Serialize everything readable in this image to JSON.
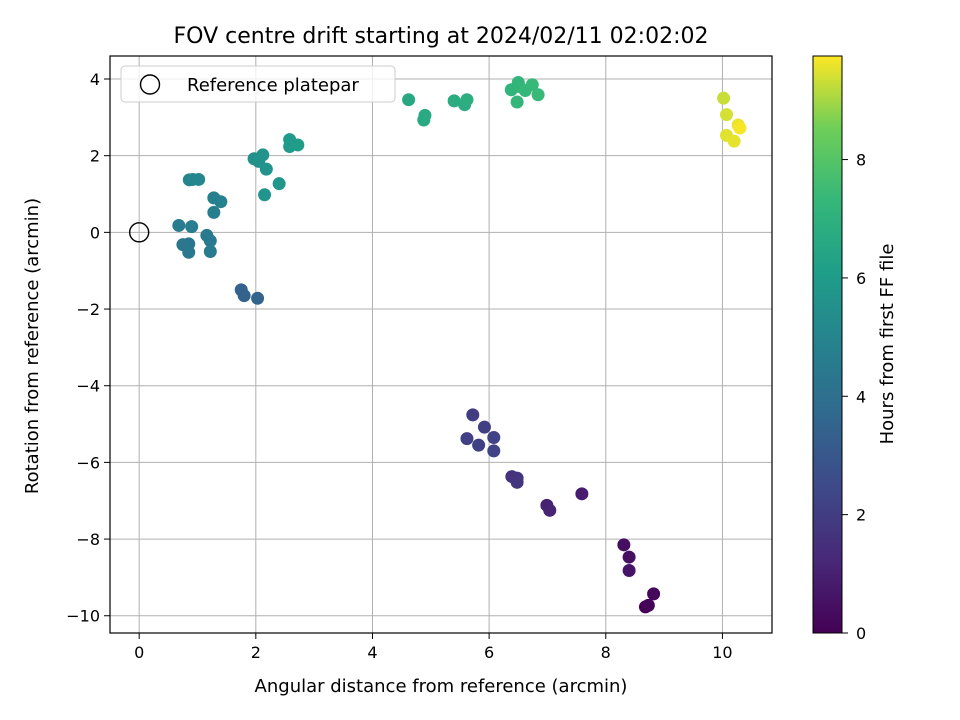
{
  "chart_data": {
    "type": "scatter",
    "title": "FOV centre drift starting at 2024/02/11 02:02:02",
    "xlabel": "Angular distance from reference (arcmin)",
    "ylabel": "Rotation from reference (arcmin)",
    "xlim": [
      -0.5,
      10.85
    ],
    "ylim": [
      -10.45,
      4.6
    ],
    "x_ticks": [
      0,
      2,
      4,
      6,
      8,
      10
    ],
    "y_ticks": [
      -10,
      -8,
      -6,
      -4,
      -2,
      0,
      2,
      4
    ],
    "grid": true,
    "legend": {
      "position": "top-left",
      "entries": [
        {
          "label": "Reference platepar",
          "marker": "open-circle"
        }
      ]
    },
    "reference_point": {
      "x": 0,
      "y": 0
    },
    "colorbar": {
      "label": "Hours from first FF file",
      "colormap": "viridis",
      "min": 0,
      "max": 9.75,
      "ticks": [
        0,
        2,
        4,
        6,
        8
      ]
    },
    "points": [
      {
        "x": 8.68,
        "y": -9.77,
        "c": 0.0
      },
      {
        "x": 8.73,
        "y": -9.73,
        "c": 0.1
      },
      {
        "x": 8.82,
        "y": -9.43,
        "c": 0.2
      },
      {
        "x": 8.31,
        "y": -8.15,
        "c": 0.4
      },
      {
        "x": 8.4,
        "y": -8.47,
        "c": 0.5
      },
      {
        "x": 8.4,
        "y": -8.82,
        "c": 0.6
      },
      {
        "x": 7.59,
        "y": -6.82,
        "c": 0.9
      },
      {
        "x": 6.99,
        "y": -7.12,
        "c": 1.0
      },
      {
        "x": 7.04,
        "y": -7.25,
        "c": 1.1
      },
      {
        "x": 6.39,
        "y": -6.37,
        "c": 1.6
      },
      {
        "x": 6.48,
        "y": -6.41,
        "c": 1.65
      },
      {
        "x": 6.48,
        "y": -6.52,
        "c": 1.7
      },
      {
        "x": 5.72,
        "y": -4.76,
        "c": 2.0
      },
      {
        "x": 5.92,
        "y": -5.08,
        "c": 2.05
      },
      {
        "x": 5.62,
        "y": -5.38,
        "c": 2.1
      },
      {
        "x": 5.82,
        "y": -5.55,
        "c": 2.15
      },
      {
        "x": 6.08,
        "y": -5.35,
        "c": 2.2
      },
      {
        "x": 6.08,
        "y": -5.7,
        "c": 2.25
      },
      {
        "x": 1.75,
        "y": -1.5,
        "c": 3.4
      },
      {
        "x": 1.8,
        "y": -1.65,
        "c": 3.45
      },
      {
        "x": 2.03,
        "y": -1.72,
        "c": 3.5
      },
      {
        "x": 0.85,
        "y": -0.3,
        "c": 4.3
      },
      {
        "x": 0.75,
        "y": -0.32,
        "c": 4.35
      },
      {
        "x": 0.85,
        "y": -0.52,
        "c": 4.4
      },
      {
        "x": 1.16,
        "y": -0.08,
        "c": 4.45
      },
      {
        "x": 1.22,
        "y": -0.22,
        "c": 4.5
      },
      {
        "x": 1.22,
        "y": -0.5,
        "c": 4.55
      },
      {
        "x": 0.68,
        "y": 0.18,
        "c": 4.6
      },
      {
        "x": 0.9,
        "y": 0.15,
        "c": 4.65
      },
      {
        "x": 1.28,
        "y": 0.52,
        "c": 4.75
      },
      {
        "x": 1.28,
        "y": 0.9,
        "c": 4.8
      },
      {
        "x": 1.4,
        "y": 0.8,
        "c": 4.85
      },
      {
        "x": 0.86,
        "y": 1.37,
        "c": 5.0
      },
      {
        "x": 0.92,
        "y": 1.38,
        "c": 5.05
      },
      {
        "x": 1.02,
        "y": 1.38,
        "c": 5.1
      },
      {
        "x": 1.97,
        "y": 1.92,
        "c": 5.5
      },
      {
        "x": 2.05,
        "y": 1.85,
        "c": 5.55
      },
      {
        "x": 2.12,
        "y": 2.02,
        "c": 5.6
      },
      {
        "x": 2.18,
        "y": 1.65,
        "c": 5.65
      },
      {
        "x": 2.15,
        "y": 0.98,
        "c": 5.7
      },
      {
        "x": 2.4,
        "y": 1.27,
        "c": 5.75
      },
      {
        "x": 2.58,
        "y": 2.42,
        "c": 5.9
      },
      {
        "x": 2.58,
        "y": 2.24,
        "c": 5.95
      },
      {
        "x": 2.72,
        "y": 2.28,
        "c": 6.0
      },
      {
        "x": 4.62,
        "y": 3.46,
        "c": 6.6
      },
      {
        "x": 4.88,
        "y": 2.93,
        "c": 6.65
      },
      {
        "x": 4.9,
        "y": 3.05,
        "c": 6.7
      },
      {
        "x": 5.4,
        "y": 3.43,
        "c": 6.75
      },
      {
        "x": 5.58,
        "y": 3.33,
        "c": 6.8
      },
      {
        "x": 5.62,
        "y": 3.46,
        "c": 6.85
      },
      {
        "x": 6.38,
        "y": 3.72,
        "c": 7.1
      },
      {
        "x": 6.5,
        "y": 3.91,
        "c": 7.15
      },
      {
        "x": 6.52,
        "y": 3.8,
        "c": 7.2
      },
      {
        "x": 6.48,
        "y": 3.4,
        "c": 7.25
      },
      {
        "x": 6.62,
        "y": 3.7,
        "c": 7.3
      },
      {
        "x": 6.74,
        "y": 3.85,
        "c": 7.35
      },
      {
        "x": 6.84,
        "y": 3.59,
        "c": 7.4
      },
      {
        "x": 10.02,
        "y": 3.5,
        "c": 9.3
      },
      {
        "x": 10.07,
        "y": 3.07,
        "c": 9.4
      },
      {
        "x": 10.07,
        "y": 2.53,
        "c": 9.5
      },
      {
        "x": 10.2,
        "y": 2.38,
        "c": 9.55
      },
      {
        "x": 10.27,
        "y": 2.8,
        "c": 9.6
      },
      {
        "x": 10.3,
        "y": 2.72,
        "c": 9.7
      }
    ]
  }
}
